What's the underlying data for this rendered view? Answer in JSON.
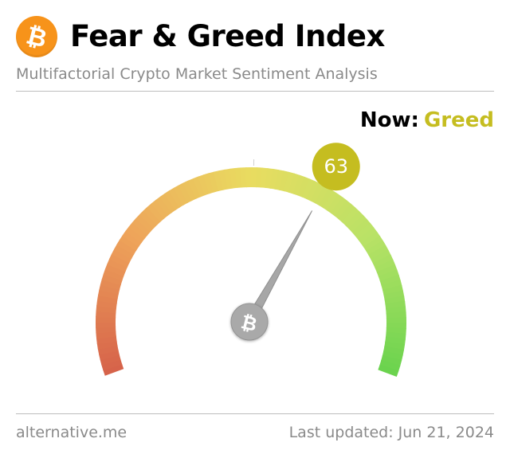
{
  "header": {
    "title": "Fear & Greed Index",
    "subtitle": "Multifactorial Crypto Market Sentiment Analysis",
    "logo_icon": "bitcoin-icon"
  },
  "status": {
    "now_label": "Now:",
    "classification": "Greed",
    "value": 63,
    "value_text": "63",
    "scale_min": 0,
    "scale_max": 100
  },
  "footer": {
    "source": "alternative.me",
    "last_updated": "Last updated: Jun 21, 2024"
  },
  "colors": {
    "bitcoin_orange": "#f7931a",
    "greed": "#c5bd20",
    "extreme_fear": "#d9624a",
    "fear": "#eea35a",
    "neutral": "#e9dc60",
    "extreme_greed": "#6dd34f",
    "needle": "#9b9b9b"
  }
}
